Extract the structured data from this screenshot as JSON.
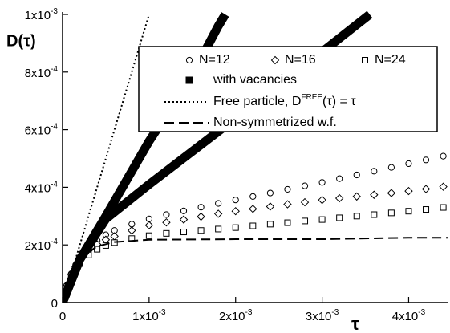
{
  "chart_data": {
    "type": "scatter-line",
    "ylabel": "D(τ)",
    "xlabel": "τ",
    "xlim": [
      0,
      0.00445
    ],
    "ylim": [
      0,
      0.001
    ],
    "xticks": [
      0,
      {
        "value": 0.001,
        "label": "1x10",
        "exponent": "-3"
      },
      {
        "value": 0.002,
        "label": "2x10",
        "exponent": "-3"
      },
      {
        "value": 0.003,
        "label": "3x10",
        "exponent": "-3"
      },
      {
        "value": 0.004,
        "label": "4x10",
        "exponent": "-3"
      }
    ],
    "yticks": [
      0,
      {
        "value": 0.0002,
        "label": "2x10",
        "exponent": "-4"
      },
      {
        "value": 0.0004,
        "label": "4x10",
        "exponent": "-4"
      },
      {
        "value": 0.0006,
        "label": "6x10",
        "exponent": "-4"
      },
      {
        "value": 0.0008,
        "label": "8x10",
        "exponent": "-4"
      },
      {
        "value": 0.001,
        "label": "1x10",
        "exponent": "-3"
      }
    ],
    "grid": false,
    "series": [
      {
        "name": "N=12",
        "color": "#000000",
        "marker": "circle",
        "x": [
          0,
          5e-05,
          0.0001,
          0.00015,
          0.0002,
          0.0003,
          0.0004,
          0.0005,
          0.0006,
          0.0008,
          0.001,
          0.0012,
          0.0014,
          0.0016,
          0.0018,
          0.002,
          0.0022,
          0.0024,
          0.0026,
          0.0028,
          0.003,
          0.0032,
          0.0034,
          0.0036,
          0.0038,
          0.004,
          0.0042,
          0.0044
        ],
        "values": [
          0,
          6e-05,
          0.0001,
          0.00013,
          0.000155,
          0.00019,
          0.000215,
          0.000235,
          0.00025,
          0.000272,
          0.00029,
          0.000305,
          0.000318,
          0.000331,
          0.000344,
          0.000356,
          0.000368,
          0.00038,
          0.000393,
          0.000405,
          0.000417,
          0.00043,
          0.000443,
          0.000456,
          0.000469,
          0.000482,
          0.000495,
          0.000508
        ]
      },
      {
        "name": "N=16",
        "color": "#000000",
        "marker": "diamond",
        "x": [
          0,
          5e-05,
          0.0001,
          0.00015,
          0.0002,
          0.0003,
          0.0004,
          0.0005,
          0.0006,
          0.0008,
          0.001,
          0.0012,
          0.0014,
          0.0016,
          0.0018,
          0.002,
          0.0022,
          0.0024,
          0.0026,
          0.0028,
          0.003,
          0.0032,
          0.0034,
          0.0036,
          0.0038,
          0.004,
          0.0042,
          0.0044
        ],
        "values": [
          0,
          6e-05,
          9.8e-05,
          0.000125,
          0.000148,
          0.00018,
          0.000202,
          0.000218,
          0.00023,
          0.00025,
          0.000268,
          0.000278,
          0.000288,
          0.000298,
          0.000308,
          0.000317,
          0.000325,
          0.000333,
          0.000341,
          0.000348,
          0.000356,
          0.000362,
          0.000368,
          0.000374,
          0.00038,
          0.000387,
          0.000394,
          0.000402
        ]
      },
      {
        "name": "N=24",
        "color": "#000000",
        "marker": "square",
        "x": [
          0,
          5e-05,
          0.0001,
          0.00015,
          0.0002,
          0.0003,
          0.0004,
          0.0005,
          0.0006,
          0.0008,
          0.001,
          0.0012,
          0.0014,
          0.0016,
          0.0018,
          0.002,
          0.0022,
          0.0024,
          0.0026,
          0.0028,
          0.003,
          0.0032,
          0.0034,
          0.0036,
          0.0038,
          0.004,
          0.0042,
          0.0044
        ],
        "values": [
          0,
          5.5e-05,
          9e-05,
          0.000115,
          0.000135,
          0.000165,
          0.000185,
          0.000198,
          0.000208,
          0.000222,
          0.000232,
          0.00024,
          0.000245,
          0.00025,
          0.000255,
          0.00026,
          0.000266,
          0.000272,
          0.000277,
          0.000283,
          0.000288,
          0.000294,
          0.0003,
          0.000305,
          0.000311,
          0.000317,
          0.000323,
          0.00033
        ]
      },
      {
        "name": "with vacancies",
        "color": "#000000",
        "marker": "filled-square",
        "curves": [
          {
            "x": [
              0,
              0.0002,
              0.0005,
              0.001,
              0.0015,
              0.0018,
              0.00188
            ],
            "values": [
              0,
              0.00015,
              0.0003,
              0.00056,
              0.00079,
              0.00096,
              0.001
            ]
          },
          {
            "x": [
              0,
              0.0002,
              0.0005,
              0.001,
              0.002,
              0.003,
              0.00355
            ],
            "values": [
              0,
              0.00015,
              0.00029,
              0.00041,
              0.00064,
              0.00087,
              0.001
            ]
          }
        ]
      },
      {
        "name": "Free particle, D",
        "name_sup": "FREE",
        "name_tail": "(τ) = τ",
        "color": "#000000",
        "style": "dotted",
        "x": [
          0,
          0.001
        ],
        "values": [
          0,
          0.001
        ]
      },
      {
        "name": "Non-symmetrized w.f.",
        "color": "#000000",
        "style": "dashed",
        "x": [
          0,
          0.0001,
          0.0002,
          0.0004,
          0.0006,
          0.001,
          0.002,
          0.003,
          0.004,
          0.00445
        ],
        "values": [
          0,
          0.00011,
          0.000155,
          0.000195,
          0.00021,
          0.000218,
          0.00022,
          0.00022,
          0.000225,
          0.000225
        ]
      }
    ]
  }
}
